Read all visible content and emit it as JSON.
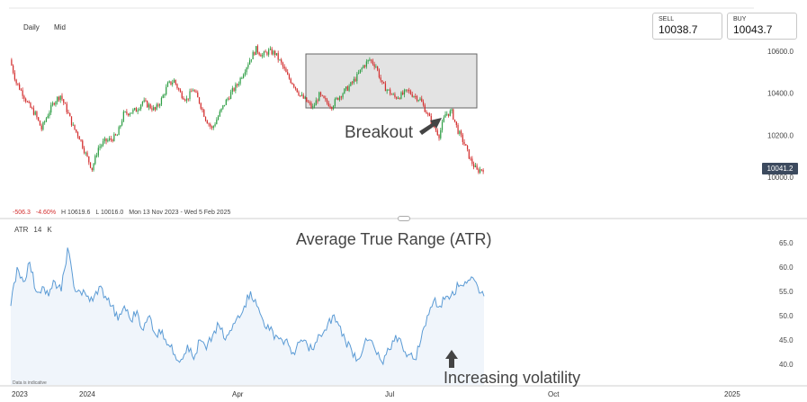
{
  "toolbar": {
    "timeframe": "Daily",
    "chart_style": "Mid"
  },
  "quotes": {
    "sell_label": "SELL",
    "sell_value": "10038.7",
    "buy_label": "BUY",
    "buy_value": "10043.7"
  },
  "stats": {
    "change": "-506.3",
    "change_pct": "-4.60%",
    "high": "H 10619.6",
    "low": "L 10016.0",
    "range": "Mon 13 Nov 2023 - Wed 5 Feb 2025"
  },
  "indicator": {
    "name": "ATR",
    "period": "14",
    "k": "K"
  },
  "disclaimer": "Data is indicative",
  "colors": {
    "up": "#2e9e45",
    "down": "#d32f2f",
    "atr_line": "#5b9bd5",
    "box_fill": "#dedede"
  },
  "chart_data": [
    {
      "type": "candlestick",
      "title": "",
      "y_ticks": [
        "10600.0",
        "10400.0",
        "10200.0",
        "10000.0"
      ],
      "ylim": [
        9850,
        10680
      ],
      "current_price": "10041.2",
      "x_ticks": [
        "2023",
        "2024",
        "Apr",
        "Jul",
        "Oct",
        "2025"
      ],
      "close": [
        10560,
        10450,
        10400,
        10340,
        10300,
        10230,
        10300,
        10360,
        10390,
        10320,
        10240,
        10190,
        10110,
        10040,
        10140,
        10170,
        10180,
        10200,
        10300,
        10310,
        10320,
        10360,
        10340,
        10320,
        10370,
        10440,
        10460,
        10400,
        10370,
        10420,
        10360,
        10280,
        10230,
        10290,
        10350,
        10400,
        10440,
        10500,
        10560,
        10610,
        10580,
        10600,
        10590,
        10540,
        10480,
        10440,
        10390,
        10360,
        10330,
        10390,
        10360,
        10340,
        10380,
        10410,
        10440,
        10480,
        10530,
        10560,
        10530,
        10440,
        10410,
        10380,
        10390,
        10410,
        10390,
        10370,
        10310,
        10250,
        10200,
        10300,
        10310,
        10220,
        10160,
        10080,
        10030,
        10041
      ],
      "annotations": [
        {
          "text": "Breakout"
        },
        {
          "shape": "rectangle",
          "label": "consolidation range"
        }
      ]
    },
    {
      "type": "line",
      "title": "Average True Range (ATR)",
      "y_ticks": [
        "65.0",
        "60.0",
        "55.0",
        "50.0",
        "45.0",
        "40.0"
      ],
      "ylim": [
        37.5,
        66.5
      ],
      "y": [
        52,
        60,
        57,
        61,
        55,
        56,
        54,
        57,
        55,
        64,
        56,
        55,
        54,
        53,
        56,
        54,
        52,
        49,
        52,
        49,
        51,
        47,
        50,
        46,
        47,
        44,
        42,
        41,
        44,
        41,
        45,
        43,
        46,
        48,
        45,
        47,
        50,
        52,
        55,
        52,
        49,
        47,
        46,
        45,
        44,
        42,
        45,
        44,
        43,
        46,
        47,
        50,
        48,
        45,
        43,
        41,
        44,
        45,
        42,
        40,
        43,
        46,
        44,
        42,
        41,
        45,
        50,
        53,
        52,
        54,
        55,
        56,
        57,
        58,
        56,
        54
      ],
      "annotations": [
        {
          "text": "Increasing volatility"
        }
      ]
    }
  ]
}
